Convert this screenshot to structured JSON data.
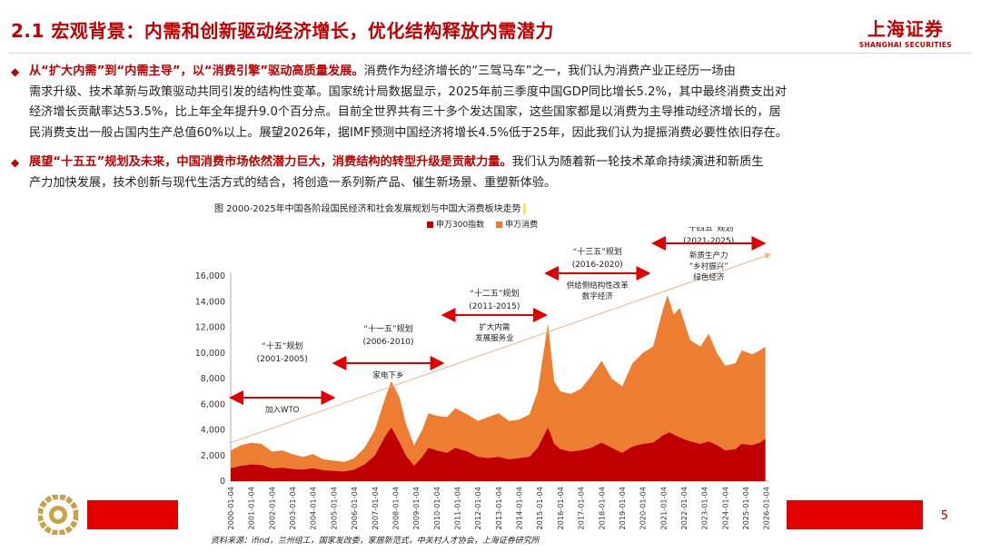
{
  "header": {
    "title": "2.1 宏观背景：内需和创新驱动经济增长，优化结构释放内需潜力",
    "logo_cn": "上海证券",
    "logo_en": "SHANGHAI SECURITIES"
  },
  "paragraphs": [
    {
      "highlight": "从“扩大内需”到“内需主导”，以“消费引擎”驱动高质量发展。",
      "lines": [
        "消费作为经济增长的“三驾马车”之一，我们认为消费产业正经历一场由",
        "需求升级、技术革新与政策驱动共同引发的结构性变革。国家统计局数据显示，2025年前三季度中国GDP同比增长5.2%，其中最终消费支出对",
        "经济增长贡献率达53.5%，比上年全年提升9.0个百分点。目前全世界共有三十多个发达国家，这些国家都是以消费为主导推动经济增长的，居",
        "民消费支出一般占国内生产总值60%以上。展望2026年，据IMF预测中国经济将增长4.5%低于25年，因此我们认为提振消费必要性依旧存在。"
      ]
    },
    {
      "highlight": "展望“十五五”规划及未来，中国消费市场依然潜力巨大，消费结构的转型升级是贡献力量。",
      "lines": [
        "我们认为随着新一轮技术革命持续演进和新质生",
        "产力加快发展，技术创新与现代生活方式的结合，将创造一系列新产品、催生新场景、重塑新体验。"
      ]
    }
  ],
  "figure_title": "图 2000-2025年中国各阶段国民经济和社会发展规划与中国大消费板块走势",
  "legend": [
    "申万300指数",
    "申万消费"
  ],
  "colors": {
    "red": "#c00000",
    "orange": "#ed7d31",
    "accent_bar": "#e20000",
    "arrow": "#e00000"
  },
  "plans": [
    {
      "name": "“十五”规划",
      "years": "(2001-2005)",
      "note": "加入WTO"
    },
    {
      "name": "“十一五”规划",
      "years": "(2006-2010)",
      "note": "家电下乡"
    },
    {
      "name": "“十二五”规划",
      "years": "(2011-2015)",
      "note": "扩大内需\n发展服务业"
    },
    {
      "name": "“十三五”规划",
      "years": "(2016-2020)",
      "note": "供给侧结构性改革\n数字经济"
    },
    {
      "name": "“十四五”规划",
      "years": "(2021-2025)",
      "note": "新质生产力\n“乡村振兴”\n绿色经济"
    }
  ],
  "chart_data": {
    "type": "area",
    "ylim": [
      0,
      16000
    ],
    "yticks": [
      "0",
      "2,000",
      "4,000",
      "6,000",
      "8,000",
      "10,000",
      "12,000",
      "14,000",
      "16,000"
    ],
    "x_labels": [
      "2000-01-04",
      "2001-01-04",
      "2002-01-04",
      "2003-01-04",
      "2004-01-04",
      "2005-01-04",
      "2006-01-04",
      "2007-01-04",
      "2008-01-04",
      "2009-01-04",
      "2010-01-04",
      "2011-01-04",
      "2012-01-04",
      "2013-01-04",
      "2014-01-04",
      "2015-01-04",
      "2016-01-04",
      "2017-01-04",
      "2018-01-04",
      "2019-01-04",
      "2020-01-04",
      "2021-01-04",
      "2022-01-04",
      "2023-01-04",
      "2024-01-04",
      "2025-01-04",
      "2026-01-04"
    ],
    "series": [
      {
        "name": "申万300指数",
        "points": [
          [
            2000.0,
            1000
          ],
          [
            2000.5,
            1200
          ],
          [
            2001.0,
            1300
          ],
          [
            2001.5,
            1250
          ],
          [
            2002.0,
            1000
          ],
          [
            2002.5,
            1050
          ],
          [
            2003.0,
            950
          ],
          [
            2003.5,
            900
          ],
          [
            2004.0,
            1000
          ],
          [
            2004.5,
            850
          ],
          [
            2005.0,
            800
          ],
          [
            2005.5,
            750
          ],
          [
            2006.0,
            900
          ],
          [
            2006.5,
            1300
          ],
          [
            2007.0,
            2000
          ],
          [
            2007.5,
            3500
          ],
          [
            2007.8,
            4200
          ],
          [
            2008.2,
            3000
          ],
          [
            2008.5,
            2000
          ],
          [
            2008.9,
            1200
          ],
          [
            2009.3,
            1900
          ],
          [
            2009.6,
            2600
          ],
          [
            2010.0,
            2400
          ],
          [
            2010.5,
            2200
          ],
          [
            2010.9,
            2600
          ],
          [
            2011.5,
            2300
          ],
          [
            2012.0,
            1900
          ],
          [
            2012.5,
            1800
          ],
          [
            2013.0,
            1900
          ],
          [
            2013.5,
            1700
          ],
          [
            2014.0,
            1800
          ],
          [
            2014.5,
            1900
          ],
          [
            2014.9,
            2600
          ],
          [
            2015.4,
            4200
          ],
          [
            2015.7,
            2900
          ],
          [
            2016.0,
            2500
          ],
          [
            2016.5,
            2300
          ],
          [
            2017.0,
            2400
          ],
          [
            2017.5,
            2600
          ],
          [
            2018.0,
            3000
          ],
          [
            2018.5,
            2600
          ],
          [
            2019.0,
            2200
          ],
          [
            2019.5,
            2700
          ],
          [
            2020.0,
            2900
          ],
          [
            2020.5,
            3000
          ],
          [
            2021.0,
            3600
          ],
          [
            2021.3,
            3800
          ],
          [
            2021.8,
            3400
          ],
          [
            2022.3,
            3100
          ],
          [
            2022.8,
            2900
          ],
          [
            2023.2,
            3100
          ],
          [
            2023.6,
            2800
          ],
          [
            2024.0,
            2400
          ],
          [
            2024.5,
            2500
          ],
          [
            2024.8,
            2900
          ],
          [
            2025.3,
            2800
          ],
          [
            2025.7,
            3000
          ],
          [
            2025.95,
            3300
          ]
        ]
      },
      {
        "name": "申万消费",
        "points": [
          [
            2000.0,
            2400
          ],
          [
            2000.5,
            2800
          ],
          [
            2001.0,
            3000
          ],
          [
            2001.5,
            2900
          ],
          [
            2002.0,
            2300
          ],
          [
            2002.5,
            2400
          ],
          [
            2003.0,
            2100
          ],
          [
            2003.5,
            1900
          ],
          [
            2004.0,
            2100
          ],
          [
            2004.5,
            1700
          ],
          [
            2005.0,
            1600
          ],
          [
            2005.5,
            1500
          ],
          [
            2006.0,
            1800
          ],
          [
            2006.5,
            2600
          ],
          [
            2007.0,
            4000
          ],
          [
            2007.5,
            6500
          ],
          [
            2007.8,
            7800
          ],
          [
            2008.2,
            6500
          ],
          [
            2008.5,
            4500
          ],
          [
            2008.9,
            2800
          ],
          [
            2009.3,
            4000
          ],
          [
            2009.6,
            5300
          ],
          [
            2010.0,
            5100
          ],
          [
            2010.5,
            5000
          ],
          [
            2010.9,
            5700
          ],
          [
            2011.5,
            5200
          ],
          [
            2012.0,
            4700
          ],
          [
            2012.5,
            5000
          ],
          [
            2013.0,
            5300
          ],
          [
            2013.5,
            4700
          ],
          [
            2014.0,
            4800
          ],
          [
            2014.5,
            5200
          ],
          [
            2014.9,
            7000
          ],
          [
            2015.4,
            12300
          ],
          [
            2015.7,
            7800
          ],
          [
            2016.0,
            7000
          ],
          [
            2016.5,
            6800
          ],
          [
            2017.0,
            7200
          ],
          [
            2017.5,
            8200
          ],
          [
            2018.0,
            9400
          ],
          [
            2018.5,
            8000
          ],
          [
            2019.0,
            7400
          ],
          [
            2019.5,
            9200
          ],
          [
            2020.0,
            10000
          ],
          [
            2020.5,
            10500
          ],
          [
            2021.0,
            13500
          ],
          [
            2021.2,
            14500
          ],
          [
            2021.5,
            13000
          ],
          [
            2021.8,
            13500
          ],
          [
            2022.3,
            11000
          ],
          [
            2022.8,
            10500
          ],
          [
            2023.2,
            11500
          ],
          [
            2023.6,
            10000
          ],
          [
            2024.0,
            9000
          ],
          [
            2024.5,
            9200
          ],
          [
            2024.8,
            10200
          ],
          [
            2025.3,
            9900
          ],
          [
            2025.7,
            10200
          ],
          [
            2025.95,
            10500
          ]
        ]
      }
    ]
  },
  "source": "资料来源：ifind，兰州组工，国家发改委，家居新范式，中关村人才协会，上海证券研究所",
  "page_number": "5"
}
